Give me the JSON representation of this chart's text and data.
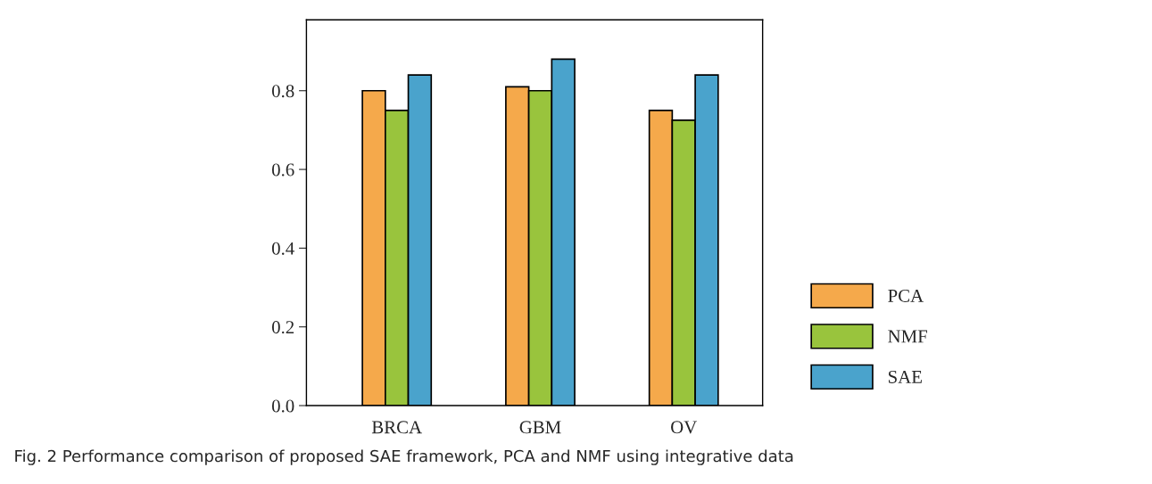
{
  "chart_data": {
    "type": "bar",
    "categories": [
      "BRCA",
      "GBM",
      "OV"
    ],
    "series": [
      {
        "name": "PCA",
        "color": "#f5a94b",
        "values": [
          0.8,
          0.81,
          0.75
        ]
      },
      {
        "name": "NMF",
        "color": "#99c43d",
        "values": [
          0.75,
          0.8,
          0.725
        ]
      },
      {
        "name": "SAE",
        "color": "#4aa3cc",
        "values": [
          0.84,
          0.88,
          0.84
        ]
      }
    ],
    "ylim": [
      0,
      0.98
    ],
    "yticks": [
      {
        "value": 0,
        "label": "0.0"
      },
      0.2,
      0.4,
      0.6,
      0.8
    ],
    "grid": false,
    "legend": "right",
    "annotations": [
      "Fig. 2 Performance comparison of proposed SAE framework, PCA and NMF using integrative data"
    ]
  }
}
